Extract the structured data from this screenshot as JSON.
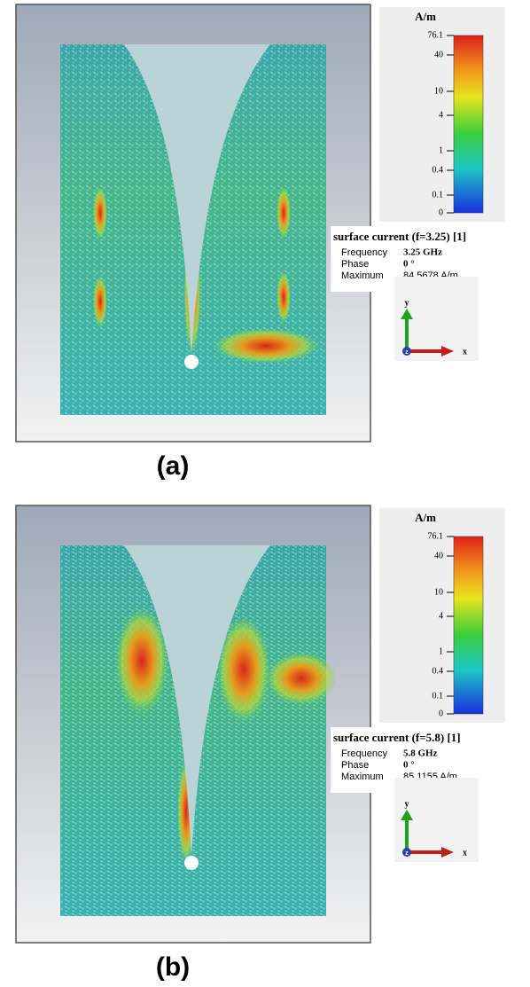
{
  "panels": [
    {
      "label": "(a)",
      "colorbar": {
        "unit": "A/m",
        "ticks": [
          "76.1",
          "40",
          "10",
          "4",
          "1",
          "0.4",
          "0.1",
          "0"
        ]
      },
      "info": {
        "title": "surface current (f=3.25) [1]",
        "rows": [
          [
            "Frequency",
            "3.25 GHz"
          ],
          [
            "Phase",
            "0 °"
          ],
          [
            "Maximum",
            "84.5678 A/m"
          ]
        ]
      },
      "axes": {
        "y": "y",
        "x": "x",
        "z": "z"
      }
    },
    {
      "label": "(b)",
      "colorbar": {
        "unit": "A/m",
        "ticks": [
          "76.1",
          "40",
          "10",
          "4",
          "1",
          "0.4",
          "0.1",
          "0"
        ]
      },
      "info": {
        "title": "surface current (f=5.8)   [1]",
        "rows": [
          [
            "Frequency",
            "5.8 GHz"
          ],
          [
            "Phase",
            "0 °"
          ],
          [
            "Maximum",
            "85.1155 A/m"
          ]
        ]
      },
      "axes": {
        "y": "y",
        "x": "x",
        "z": "z"
      }
    }
  ]
}
